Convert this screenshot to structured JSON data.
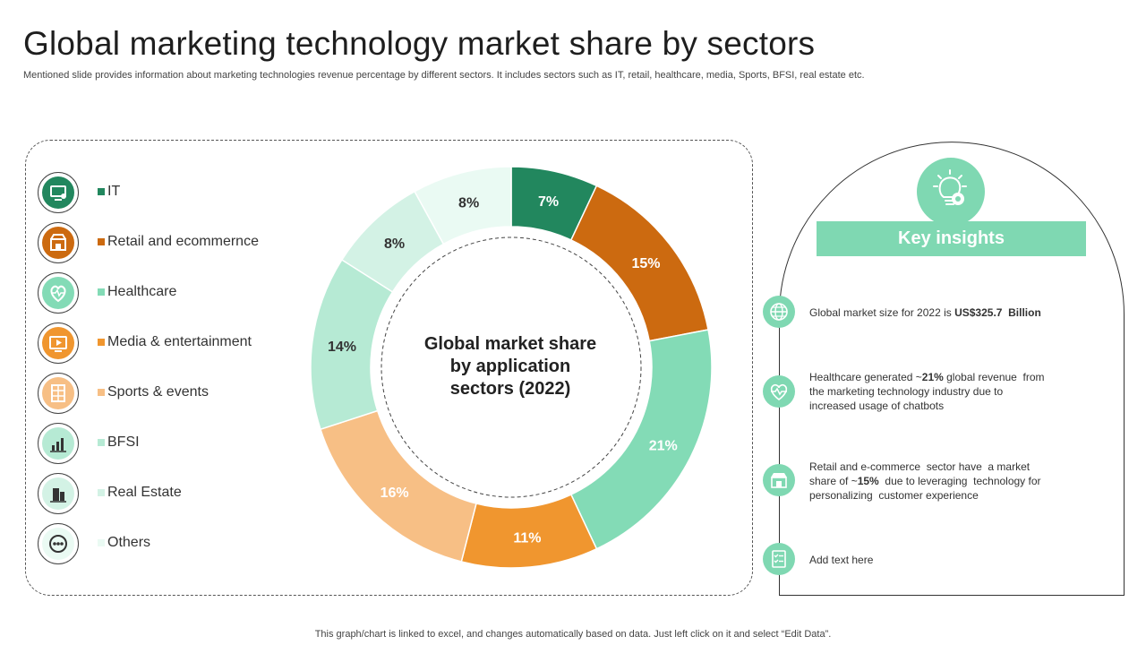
{
  "page": {
    "title": "Global marketing technology market share by sectors",
    "subtitle": "Mentioned slide provides information about marketing technologies revenue percentage by different sectors. It includes sectors such as IT, retail, healthcare, media, Sports, BFSI, real estate etc.",
    "footer": "This graph/chart is linked to excel,  and changes automatically based on data. Just left click on it and select “Edit Data”."
  },
  "chart_data": {
    "type": "pie",
    "variant": "donut",
    "title": "Global market share by application sectors (2022)",
    "center_label_lines": [
      "Global market share",
      "by application",
      "sectors (2022)"
    ],
    "categories": [
      "IT",
      "Retail and ecommernce",
      "Healthcare",
      "Media & entertainment",
      "Sports & events",
      "BFSI",
      "Real Estate",
      "Others"
    ],
    "values": [
      7,
      15,
      21,
      11,
      16,
      14,
      8,
      8
    ],
    "data_labels": [
      "7%",
      "15%",
      "21%",
      "11%",
      "16%",
      "14%",
      "8%",
      "8%"
    ],
    "colors": [
      "#22875e",
      "#cc6a10",
      "#83dbb6",
      "#f0962f",
      "#f7bf85",
      "#b6ead4",
      "#d3f2e5",
      "#eafaf3"
    ],
    "label_colors": [
      "#ffffff",
      "#ffffff",
      "#ffffff",
      "#ffffff",
      "#ffffff",
      "#333333",
      "#333333",
      "#333333"
    ],
    "legend_position": "left"
  },
  "legend_icons": [
    {
      "name": "it-icon",
      "bg": "#22875e",
      "fg": "#ffffff"
    },
    {
      "name": "retail-icon",
      "bg": "#cc6a10",
      "fg": "#ffffff"
    },
    {
      "name": "healthcare-icon",
      "bg": "#83dbb6",
      "fg": "#ffffff"
    },
    {
      "name": "media-icon",
      "bg": "#f0962f",
      "fg": "#ffffff"
    },
    {
      "name": "sports-icon",
      "bg": "#f7bf85",
      "fg": "#ffffff"
    },
    {
      "name": "bfsi-icon",
      "bg": "#b6ead4",
      "fg": "#333333"
    },
    {
      "name": "real-estate-icon",
      "bg": "#d3f2e5",
      "fg": "#333333"
    },
    {
      "name": "others-icon",
      "bg": "#eafaf3",
      "fg": "#333333"
    }
  ],
  "key_insights": {
    "heading": "Key insights",
    "items": [
      {
        "icon": "globe-icon",
        "lines": [
          [
            "Global market size for 2022 is ",
            "US$325.7  Billion",
            ""
          ]
        ]
      },
      {
        "icon": "heart-pulse-icon",
        "lines": [
          [
            "Healthcare generated ~",
            "21%",
            " global revenue  from"
          ],
          [
            "the marketing technology industry due to",
            "",
            ""
          ],
          [
            "increased usage of chatbots",
            "",
            ""
          ]
        ]
      },
      {
        "icon": "shop-icon",
        "lines": [
          [
            "Retail and e-commerce  sector have  a market",
            "",
            ""
          ],
          [
            "share of ~",
            "15%",
            "  due to leveraging  technology for"
          ],
          [
            "personalizing  customer experience",
            "",
            ""
          ]
        ]
      },
      {
        "icon": "checklist-icon",
        "lines": [
          [
            "Add text here",
            "",
            ""
          ]
        ]
      }
    ]
  }
}
